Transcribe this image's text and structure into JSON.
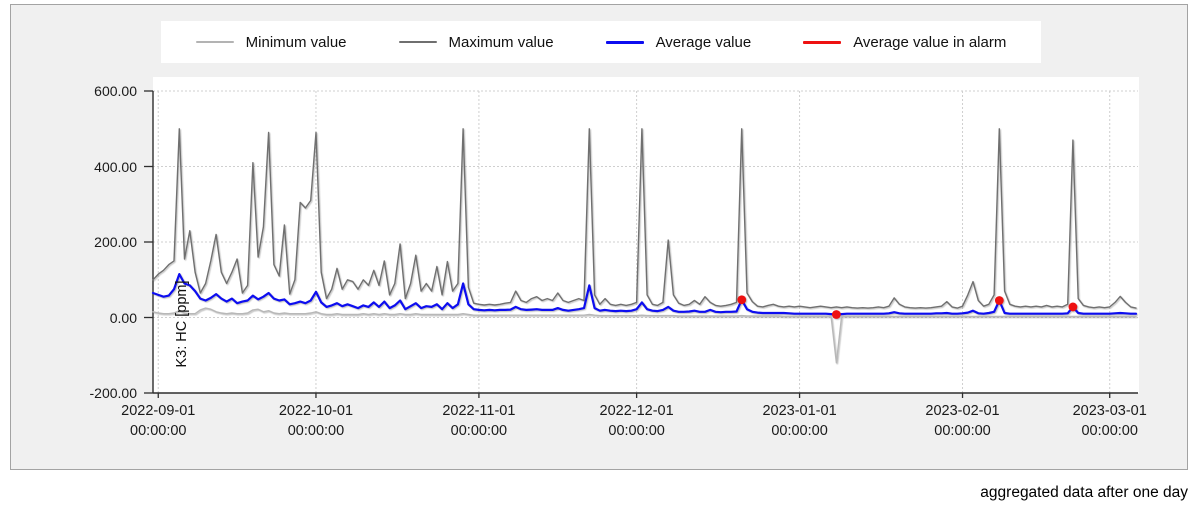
{
  "caption": "aggregated data after one day",
  "legend": {
    "items": [
      {
        "label": "Minimum value",
        "color": "#b3b3b3",
        "style": "thin"
      },
      {
        "label": "Maximum value",
        "color": "#6f6f6f",
        "style": "thin"
      },
      {
        "label": "Average value",
        "color": "#0d0df0",
        "style": "thick"
      },
      {
        "label": "Average value in alarm",
        "color": "#ee1111",
        "style": "thick"
      }
    ]
  },
  "y_axis": {
    "title": "K3: HC [ppm]",
    "ticks": [
      "600.00",
      "400.00",
      "200.00",
      "0.00",
      "-200.00"
    ],
    "tick_values": [
      600,
      400,
      200,
      0,
      -200
    ]
  },
  "x_axis": {
    "ticks": [
      {
        "date": "2022-09-01",
        "time": "00:00:00",
        "day": 1
      },
      {
        "date": "2022-10-01",
        "time": "00:00:00",
        "day": 31
      },
      {
        "date": "2022-11-01",
        "time": "00:00:00",
        "day": 62
      },
      {
        "date": "2022-12-01",
        "time": "00:00:00",
        "day": 92
      },
      {
        "date": "2023-01-01",
        "time": "00:00:00",
        "day": 123
      },
      {
        "date": "2023-02-01",
        "time": "00:00:00",
        "day": 154
      },
      {
        "date": "2023-03-01",
        "time": "00:00:00",
        "day": 182
      }
    ]
  },
  "chart_data": {
    "type": "line",
    "title": "",
    "xlabel": "",
    "ylabel": "K3: HC [ppm]",
    "ylim": [
      -200,
      600
    ],
    "grid": true,
    "legend_position": "top",
    "x_start_date": "2022-08-31",
    "x_interval": "1 day (aggregated)",
    "x_days_total": 187,
    "series": [
      {
        "name": "Minimum value",
        "color": "#b8b8b8",
        "width": 1.4,
        "values": [
          15,
          12,
          10,
          10,
          12,
          18,
          12,
          10,
          10,
          20,
          25,
          22,
          15,
          12,
          10,
          12,
          10,
          10,
          12,
          20,
          22,
          15,
          18,
          12,
          10,
          12,
          10,
          10,
          10,
          10,
          12,
          15,
          10,
          8,
          8,
          10,
          8,
          8,
          8,
          8,
          10,
          8,
          10,
          8,
          10,
          8,
          8,
          10,
          8,
          8,
          10,
          8,
          8,
          8,
          8,
          8,
          8,
          8,
          8,
          10,
          8,
          6,
          6,
          6,
          6,
          6,
          6,
          6,
          6,
          6,
          6,
          6,
          6,
          6,
          6,
          6,
          6,
          6,
          6,
          6,
          6,
          6,
          6,
          8,
          6,
          5,
          5,
          5,
          5,
          5,
          5,
          5,
          5,
          6,
          5,
          5,
          5,
          5,
          5,
          5,
          4,
          4,
          4,
          4,
          4,
          4,
          4,
          4,
          4,
          4,
          4,
          4,
          5,
          4,
          4,
          4,
          4,
          4,
          4,
          4,
          3,
          3,
          3,
          3,
          3,
          3,
          3,
          3,
          3,
          3,
          -120,
          3,
          3,
          3,
          3,
          3,
          3,
          3,
          3,
          3,
          3,
          3,
          3,
          3,
          3,
          3,
          3,
          3,
          3,
          3,
          3,
          3,
          3,
          3,
          3,
          3,
          3,
          3,
          3,
          3,
          3,
          3,
          3,
          3,
          3,
          3,
          3,
          3,
          3,
          3,
          3,
          3,
          3,
          3,
          3,
          3,
          3,
          3,
          3,
          3,
          3,
          3,
          3,
          3,
          3,
          3,
          3,
          3
        ],
        "note": "single dip to about -120 ppm on 2023-01-08"
      },
      {
        "name": "Maximum value",
        "color": "#707070",
        "width": 1.4,
        "values": [
          100,
          115,
          125,
          140,
          150,
          500,
          155,
          230,
          120,
          65,
          90,
          150,
          220,
          120,
          90,
          120,
          155,
          65,
          85,
          410,
          160,
          240,
          490,
          140,
          110,
          245,
          62,
          100,
          305,
          290,
          310,
          490,
          120,
          50,
          75,
          130,
          75,
          100,
          95,
          75,
          100,
          85,
          125,
          85,
          150,
          60,
          90,
          195,
          50,
          90,
          165,
          70,
          90,
          70,
          135,
          60,
          148,
          70,
          90,
          500,
          80,
          38,
          35,
          33,
          35,
          33,
          35,
          38,
          40,
          70,
          45,
          40,
          50,
          55,
          45,
          50,
          45,
          65,
          45,
          40,
          45,
          50,
          45,
          500,
          60,
          35,
          50,
          35,
          32,
          35,
          32,
          35,
          40,
          500,
          60,
          35,
          32,
          40,
          205,
          60,
          38,
          32,
          35,
          45,
          35,
          55,
          40,
          32,
          30,
          32,
          35,
          40,
          500,
          65,
          42,
          30,
          28,
          32,
          35,
          30,
          28,
          30,
          28,
          30,
          28,
          26,
          28,
          30,
          28,
          26,
          28,
          26,
          28,
          26,
          25,
          26,
          25,
          26,
          28,
          26,
          30,
          52,
          35,
          28,
          26,
          25,
          26,
          25,
          26,
          28,
          30,
          42,
          28,
          25,
          30,
          60,
          95,
          45,
          30,
          35,
          60,
          500,
          70,
          35,
          30,
          28,
          30,
          28,
          30,
          28,
          32,
          28,
          30,
          28,
          35,
          470,
          50,
          32,
          28,
          26,
          28,
          26,
          28,
          40,
          56,
          40,
          28,
          25
        ],
        "note": "spikes to ~500 ppm on 2022-09-05, 09-22, 10-01, 10-29, 11-22, 12-02, 12-21, 2023-02-08 and ~470 on 2023-02-22"
      },
      {
        "name": "Average value",
        "color": "#0d0df0",
        "width": 2.2,
        "values": [
          65,
          60,
          55,
          58,
          75,
          115,
          90,
          85,
          70,
          50,
          45,
          52,
          62,
          50,
          42,
          50,
          38,
          42,
          45,
          58,
          48,
          55,
          65,
          50,
          45,
          48,
          35,
          38,
          42,
          38,
          45,
          68,
          40,
          28,
          32,
          38,
          30,
          35,
          30,
          25,
          32,
          28,
          40,
          28,
          42,
          25,
          32,
          45,
          22,
          30,
          38,
          25,
          30,
          28,
          35,
          22,
          38,
          25,
          35,
          90,
          35,
          22,
          20,
          19,
          20,
          19,
          20,
          20,
          21,
          28,
          22,
          20,
          21,
          22,
          20,
          20,
          20,
          25,
          20,
          18,
          20,
          22,
          25,
          85,
          25,
          18,
          20,
          18,
          17,
          18,
          17,
          18,
          22,
          40,
          22,
          18,
          17,
          20,
          28,
          18,
          15,
          15,
          16,
          18,
          15,
          15,
          20,
          15,
          14,
          15,
          15,
          16,
          47,
          22,
          15,
          13,
          12,
          12,
          12,
          12,
          12,
          11,
          10,
          10,
          10,
          10,
          10,
          10,
          10,
          9,
          8,
          9,
          10,
          10,
          10,
          10,
          10,
          10,
          10,
          10,
          11,
          14,
          11,
          10,
          10,
          10,
          10,
          10,
          10,
          11,
          11,
          12,
          10,
          10,
          11,
          13,
          18,
          11,
          10,
          12,
          15,
          45,
          12,
          10,
          10,
          10,
          10,
          10,
          10,
          10,
          10,
          10,
          10,
          10,
          11,
          28,
          12,
          10,
          10,
          10,
          10,
          10,
          10,
          11,
          12,
          11,
          10,
          10
        ]
      },
      {
        "name": "Average value in alarm",
        "color": "#ee1111",
        "marker": "dot",
        "points": [
          {
            "day": 112,
            "date": "2022-12-21",
            "value": 47
          },
          {
            "day": 130,
            "date": "2023-01-08",
            "value": 8
          },
          {
            "day": 161,
            "date": "2023-02-08",
            "value": 45
          },
          {
            "day": 175,
            "date": "2023-02-22",
            "value": 28
          }
        ]
      }
    ]
  }
}
